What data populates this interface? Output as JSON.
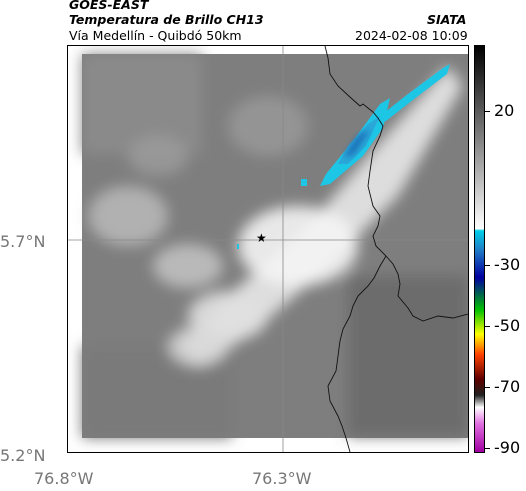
{
  "header": {
    "satellite": "GOES-EAST",
    "product": "Temperatura de Brillo CH13",
    "organization": "SIATA",
    "region": "Vía Medellín - Quibdó 50km",
    "datetime": "2024-02-08 10:09"
  },
  "map": {
    "lat_labels": [
      "5.7°N",
      "5.2°N"
    ],
    "lon_labels": [
      "76.8°W",
      "76.3°W"
    ],
    "marker_icon": "star-icon",
    "background_colormap": "grayscale (warm = dark, cold = white)",
    "cold_cloud_color": "#1ec6e6"
  },
  "colorbar": {
    "tick_labels": [
      "20",
      "-30",
      "-50",
      "-70",
      "-90"
    ],
    "segments": [
      "#000000",
      "#ffffff",
      "#00d0e8",
      "#0000a0",
      "#00c000",
      "#ffff00",
      "#ff4000",
      "#600000",
      "#ffffff",
      "#c000c0"
    ]
  }
}
